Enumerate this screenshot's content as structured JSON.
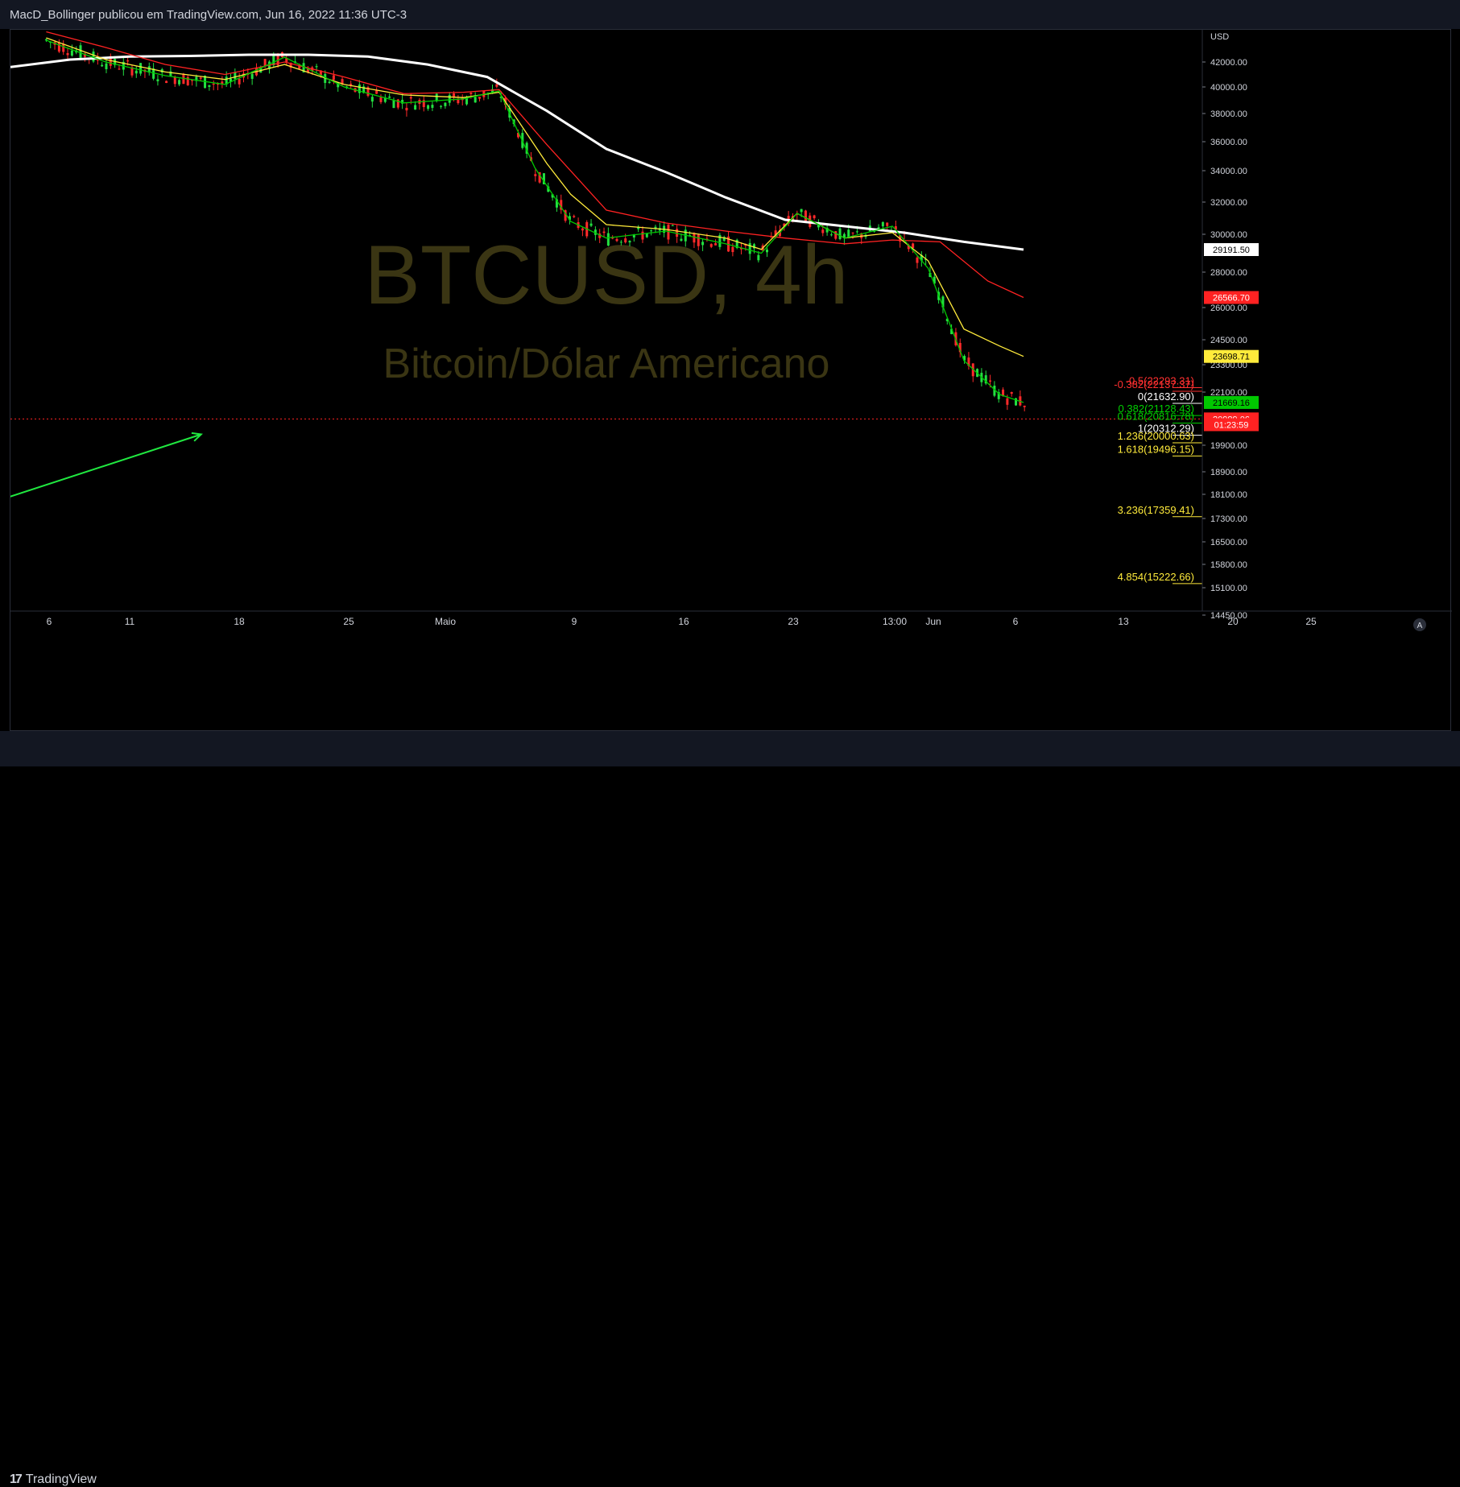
{
  "header": {
    "publish_line": "MacD_Bollinger publicou em TradingView.com, Jun 16, 2022 11:36 UTC-3"
  },
  "watermark": {
    "symbol": "BTCUSD, 4h",
    "description": "Bitcoin/Dólar Americano"
  },
  "footer": {
    "brand": "TradingView"
  },
  "colors": {
    "background": "#000000",
    "panel": "#131722",
    "candle_up": "#26a69a",
    "candle_down": "#ef5350",
    "sma_white": "#ffffff",
    "ma_red": "#ff2222",
    "ma_yellow": "#ffeb3b",
    "ma_green": "#00c800",
    "watermark": "#3a3513",
    "arrow": "#20e840"
  },
  "chart_data": {
    "type": "line",
    "symbol": "BTCUSD",
    "interval": "4h",
    "currency": "USD",
    "y_axis_unit": "USD",
    "y_ticks": [
      "42000.00",
      "40000.00",
      "38000.00",
      "36000.00",
      "34000.00",
      "32000.00",
      "30000.00",
      "28000.00",
      "26000.00",
      "24500.00",
      "23300.00",
      "22100.00",
      "19900.00",
      "18900.00",
      "18100.00",
      "17300.00",
      "16500.00",
      "15800.00",
      "15100.00",
      "14450.00"
    ],
    "x_ticks": [
      "6",
      "11",
      "18",
      "25",
      "Maio",
      "9",
      "16",
      "23",
      "13:00",
      "Jun",
      "6",
      "13",
      "20",
      "25"
    ],
    "scale_note": "log",
    "price_badges": [
      {
        "text": "29191.50",
        "bg": "#ffffff",
        "fg": "#000000",
        "value": 29191.5
      },
      {
        "text": "26566.70",
        "bg": "#ff2222",
        "fg": "#ffffff",
        "value": 26566.7
      },
      {
        "text": "23698.71",
        "bg": "#ffeb3b",
        "fg": "#000000",
        "value": 23698.71
      },
      {
        "text": "21669.16",
        "bg": "#00c800",
        "fg": "#000000",
        "value": 21669.16
      },
      {
        "text": "20989.06",
        "bg": "#ff2222",
        "fg": "#ffffff",
        "value": 20989.06
      },
      {
        "text": "01:23:59",
        "bg": "#ff2222",
        "fg": "#ffffff",
        "value": 20750
      }
    ],
    "fib_levels": [
      {
        "label": "-0.5(22293.31)",
        "value": 22293.31,
        "color": "#ff3030"
      },
      {
        "label": "-0.382(22137.37)",
        "value": 22137.37,
        "color": "#ff3030"
      },
      {
        "label": "0(21632.90)",
        "value": 21632.9,
        "color": "#ffffff"
      },
      {
        "label": "0.382(21128.43)",
        "value": 21128.43,
        "color": "#00d000"
      },
      {
        "label": "0.618(20816.78)",
        "value": 20816.78,
        "color": "#00d000"
      },
      {
        "label": "1(20312.29)",
        "value": 20312.29,
        "color": "#ffffff"
      },
      {
        "label": "1.236(20000.63)",
        "value": 20000.63,
        "color": "#ffeb3b"
      },
      {
        "label": "1.618(19496.15)",
        "value": 19496.15,
        "color": "#ffeb3b"
      },
      {
        "label": "3.236(17359.41)",
        "value": 17359.41,
        "color": "#ffeb3b"
      },
      {
        "label": "4.854(15222.66)",
        "value": 15222.66,
        "color": "#ffeb3b"
      }
    ],
    "current_price": 20989.06,
    "series": [
      {
        "key": "sma_white",
        "color": "#ffffff",
        "x": [
          0,
          0.05,
          0.1,
          0.15,
          0.2,
          0.25,
          0.3,
          0.35,
          0.4,
          0.45,
          0.5,
          0.55,
          0.6,
          0.65,
          0.7,
          0.75,
          0.8,
          0.85
        ],
        "y": [
          41600,
          42200,
          42450,
          42500,
          42600,
          42600,
          42450,
          41800,
          40800,
          38200,
          35500,
          33900,
          32300,
          30900,
          30500,
          30100,
          29600,
          29191.5
        ]
      },
      {
        "key": "ma_red",
        "color": "#ff2222",
        "x": [
          0.03,
          0.08,
          0.13,
          0.18,
          0.23,
          0.28,
          0.33,
          0.38,
          0.41,
          0.45,
          0.5,
          0.55,
          0.6,
          0.65,
          0.7,
          0.74,
          0.78,
          0.82,
          0.85
        ],
        "y": [
          44500,
          43200,
          41800,
          41000,
          42000,
          40800,
          39500,
          39600,
          39800,
          35800,
          31500,
          30700,
          30200,
          29800,
          29500,
          29700,
          29600,
          27500,
          26566.7
        ]
      },
      {
        "key": "ma_yellow",
        "color": "#ffeb3b",
        "x": [
          0.03,
          0.08,
          0.13,
          0.18,
          0.23,
          0.28,
          0.33,
          0.38,
          0.41,
          0.45,
          0.47,
          0.5,
          0.55,
          0.6,
          0.63,
          0.66,
          0.7,
          0.74,
          0.77,
          0.8,
          0.83,
          0.85
        ],
        "y": [
          44000,
          42200,
          41200,
          40600,
          41800,
          40200,
          39400,
          39200,
          39600,
          34500,
          32500,
          30600,
          30300,
          29800,
          29200,
          31300,
          29800,
          30100,
          28600,
          25000,
          24200,
          23698.71
        ]
      },
      {
        "key": "ma_green",
        "color": "#00c800",
        "x": [
          0.03,
          0.08,
          0.13,
          0.18,
          0.23,
          0.28,
          0.33,
          0.38,
          0.41,
          0.44,
          0.47,
          0.5,
          0.55,
          0.6,
          0.63,
          0.66,
          0.7,
          0.74,
          0.77,
          0.8,
          0.83,
          0.85
        ],
        "y": [
          43800,
          42000,
          40900,
          40200,
          42400,
          40000,
          38800,
          39100,
          39700,
          34200,
          30800,
          29800,
          30200,
          29500,
          29000,
          31300,
          29800,
          30500,
          28200,
          23500,
          22000,
          21669.16
        ]
      }
    ],
    "arrow": {
      "from": [
        -0.01,
        17900
      ],
      "to": [
        0.16,
        20350
      ]
    }
  }
}
